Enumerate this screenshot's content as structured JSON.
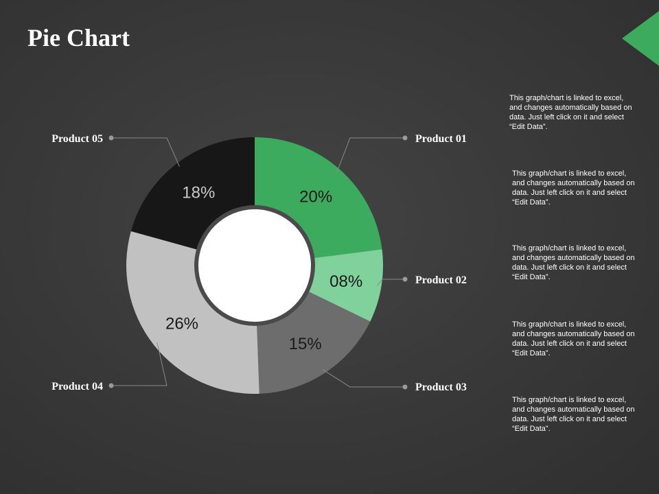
{
  "slide": {
    "title": "Pie Chart",
    "accent_color": "#3dab5e"
  },
  "chart_data": {
    "type": "pie",
    "title": "Pie Chart",
    "categories": [
      "Product 01",
      "Product 02",
      "Product 03",
      "Product 04",
      "Product 05"
    ],
    "values": [
      20,
      8,
      15,
      26,
      18
    ],
    "value_labels": [
      "20%",
      "08%",
      "15%",
      "26%",
      "18%"
    ],
    "colors": [
      "#3dab5e",
      "#80d19c",
      "#6d6d6d",
      "#c1c1c1",
      "#171717"
    ],
    "label_colors": [
      "#1a1a1a",
      "#1a1a1a",
      "#1a1a1a",
      "#1a1a1a",
      "#c9c9c9"
    ],
    "donut": true
  },
  "descriptions": [
    "This graph/chart is linked to excel, and changes automatically based on data. Just left click on it and select “Edit Data”.",
    "This graph/chart is linked to excel, and changes automatically based on data. Just left click on it and select “Edit Data”.",
    "This graph/chart is linked to excel, and changes automatically based on data. Just left click on it and select “Edit Data”.",
    "This graph/chart is linked to excel, and changes automatically based on data. Just left click on it and select “Edit Data”.",
    "This graph/chart is linked to excel, and changes automatically based on data. Just left click on it and select “Edit Data”."
  ]
}
